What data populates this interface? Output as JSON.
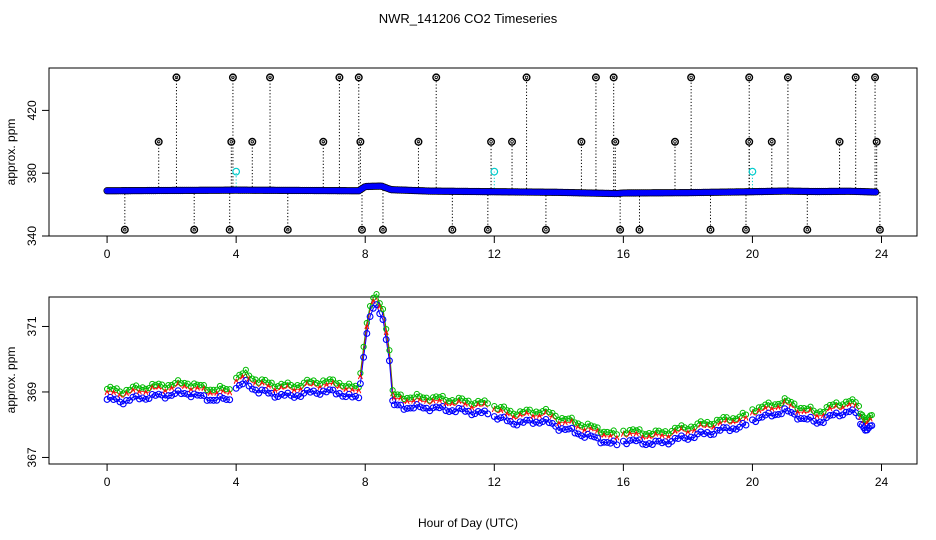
{
  "title": "NWR_141206  CO2 Timeseries",
  "xlabel": "Hour of Day (UTC)",
  "colors": {
    "raw": "#000000",
    "avg": "#0000ff",
    "cyan": "#00cccc",
    "green": "#00bb00",
    "red": "#ff0000",
    "blue": "#0000ff"
  },
  "chart_data": [
    {
      "type": "scatter",
      "panel": "top",
      "ylabel": "approx. ppm",
      "xlim": [
        -1.8,
        25.1
      ],
      "ylim": [
        340,
        447
      ],
      "xticks": [
        0,
        4,
        8,
        12,
        16,
        20,
        24
      ],
      "yticks": [
        340,
        380,
        420
      ],
      "xticklabels": [
        "0",
        "4",
        "8",
        "12",
        "16",
        "20",
        "24"
      ],
      "yticklabels": [
        "340",
        "380",
        "420"
      ],
      "baseline": [
        [
          0,
          368.8
        ],
        [
          2,
          369.0
        ],
        [
          4,
          369.2
        ],
        [
          6,
          369.0
        ],
        [
          7.8,
          368.8
        ],
        [
          8.0,
          371.5
        ],
        [
          8.5,
          371.8
        ],
        [
          8.8,
          369.5
        ],
        [
          10,
          368.6
        ],
        [
          12,
          368.2
        ],
        [
          14,
          367.8
        ],
        [
          15.8,
          367.0
        ],
        [
          16,
          367.4
        ],
        [
          18,
          367.6
        ],
        [
          20,
          368.2
        ],
        [
          21,
          368.6
        ],
        [
          22,
          368.3
        ],
        [
          23,
          368.5
        ],
        [
          23.8,
          368.0
        ]
      ],
      "spikes_high": [
        [
          2.15,
          441
        ],
        [
          3.9,
          441
        ],
        [
          5.05,
          441
        ],
        [
          7.2,
          441
        ],
        [
          7.8,
          441
        ],
        [
          10.2,
          441
        ],
        [
          13.0,
          441
        ],
        [
          15.15,
          441
        ],
        [
          15.7,
          441
        ],
        [
          18.1,
          441
        ],
        [
          19.9,
          441
        ],
        [
          21.1,
          441
        ],
        [
          23.2,
          441
        ],
        [
          23.8,
          441
        ],
        [
          1.6,
          400
        ],
        [
          3.85,
          400
        ],
        [
          4.5,
          400
        ],
        [
          6.7,
          400
        ],
        [
          7.85,
          400
        ],
        [
          9.65,
          400
        ],
        [
          11.9,
          400
        ],
        [
          12.55,
          400
        ],
        [
          14.7,
          400
        ],
        [
          15.75,
          400
        ],
        [
          17.6,
          400
        ],
        [
          19.9,
          400
        ],
        [
          20.6,
          400
        ],
        [
          22.7,
          400
        ],
        [
          23.85,
          400
        ]
      ],
      "spikes_low": [
        [
          0.55,
          344
        ],
        [
          2.7,
          344
        ],
        [
          3.8,
          344
        ],
        [
          5.6,
          344
        ],
        [
          7.9,
          344
        ],
        [
          8.55,
          344
        ],
        [
          10.7,
          344
        ],
        [
          11.8,
          344
        ],
        [
          13.6,
          344
        ],
        [
          15.9,
          344
        ],
        [
          16.5,
          344
        ],
        [
          18.7,
          344
        ],
        [
          19.8,
          344
        ],
        [
          21.7,
          344
        ],
        [
          23.95,
          344
        ]
      ],
      "spikes_cyan": [
        [
          4.0,
          381
        ],
        [
          12.0,
          381
        ],
        [
          20.0,
          381
        ]
      ]
    },
    {
      "type": "line",
      "panel": "bottom",
      "ylabel": "approx. ppm",
      "xlim": [
        -1.8,
        25.1
      ],
      "ylim": [
        366.8,
        371.9
      ],
      "xticks": [
        0,
        4,
        8,
        12,
        16,
        20,
        24
      ],
      "yticks": [
        367,
        369,
        371
      ],
      "xticklabels": [
        "0",
        "4",
        "8",
        "12",
        "16",
        "20",
        "24"
      ],
      "yticklabels": [
        "367",
        "369",
        "371"
      ],
      "segments": [
        [
          [
            0,
            368.85
          ],
          [
            0.5,
            368.8
          ],
          [
            1.0,
            368.9
          ],
          [
            1.5,
            368.95
          ],
          [
            2.0,
            369.0
          ],
          [
            2.5,
            369.05
          ],
          [
            2.8,
            368.95
          ],
          [
            3.3,
            368.85
          ],
          [
            3.8,
            368.85
          ]
        ],
        [
          [
            4.0,
            369.2
          ],
          [
            4.3,
            369.35
          ],
          [
            4.7,
            369.1
          ],
          [
            5.2,
            369.0
          ],
          [
            5.7,
            368.95
          ],
          [
            6.2,
            369.05
          ],
          [
            6.7,
            369.1
          ],
          [
            7.2,
            369.05
          ],
          [
            7.6,
            368.9
          ],
          [
            7.8,
            368.9
          ]
        ],
        [
          [
            7.85,
            369.4
          ],
          [
            8.0,
            370.6
          ],
          [
            8.15,
            371.4
          ],
          [
            8.35,
            371.7
          ],
          [
            8.55,
            371.3
          ],
          [
            8.7,
            370.5
          ],
          [
            8.8,
            369.6
          ],
          [
            8.85,
            368.75
          ]
        ],
        [
          [
            8.9,
            368.65
          ],
          [
            9.5,
            368.6
          ],
          [
            10.0,
            368.6
          ],
          [
            10.5,
            368.55
          ],
          [
            11.0,
            368.5
          ],
          [
            11.5,
            368.45
          ],
          [
            11.8,
            368.4
          ]
        ],
        [
          [
            12.0,
            368.35
          ],
          [
            12.5,
            368.15
          ],
          [
            13.0,
            368.15
          ],
          [
            13.5,
            368.2
          ],
          [
            14.0,
            368.0
          ],
          [
            14.5,
            367.85
          ],
          [
            15.0,
            367.7
          ],
          [
            15.5,
            367.55
          ],
          [
            15.8,
            367.45
          ]
        ],
        [
          [
            16.0,
            367.6
          ],
          [
            16.5,
            367.55
          ],
          [
            17.0,
            367.5
          ],
          [
            17.5,
            367.6
          ],
          [
            18.0,
            367.7
          ],
          [
            18.5,
            367.8
          ],
          [
            19.0,
            367.9
          ],
          [
            19.5,
            368.0
          ],
          [
            19.8,
            368.05
          ]
        ],
        [
          [
            20.0,
            368.25
          ],
          [
            20.5,
            368.35
          ],
          [
            21.0,
            368.5
          ],
          [
            21.5,
            368.3
          ],
          [
            22.0,
            368.15
          ],
          [
            22.5,
            368.35
          ],
          [
            23.0,
            368.5
          ],
          [
            23.3,
            368.35
          ]
        ],
        [
          [
            23.35,
            368.1
          ],
          [
            23.5,
            368.0
          ],
          [
            23.7,
            368.0
          ]
        ]
      ],
      "offsets": {
        "red": 0.12,
        "green": 0.24,
        "blue": -0.08
      }
    }
  ]
}
